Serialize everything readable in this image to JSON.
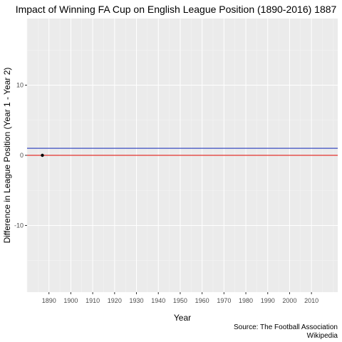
{
  "chart_data": {
    "type": "scatter",
    "title": "Impact of Winning FA Cup on English League Position (1890-2016) 1887",
    "xlabel": "Year",
    "ylabel": "Difference in League Position (Year 1 - Year 2)",
    "xlim": [
      1880,
      2022
    ],
    "ylim": [
      -19.5,
      19.5
    ],
    "x_ticks": [
      1890,
      1900,
      1910,
      1920,
      1930,
      1940,
      1950,
      1960,
      1970,
      1980,
      1990,
      2000,
      2010
    ],
    "x_minor_step": 5,
    "y_ticks": [
      -10,
      0,
      10
    ],
    "y_tick_labels": [
      "-10",
      "0",
      "10"
    ],
    "points": [
      {
        "x": 1887,
        "y": 0
      }
    ],
    "reference_lines": [
      {
        "y": 0,
        "color": "#e3342f"
      },
      {
        "y": 1,
        "color": "#3b4cc0"
      }
    ],
    "grid": true,
    "caption": [
      "Source: The Football Association",
      "Wikipedia"
    ]
  },
  "colors": {
    "panel_background": "#ebebeb",
    "grid_major": "#ffffff",
    "point": "#000000"
  }
}
